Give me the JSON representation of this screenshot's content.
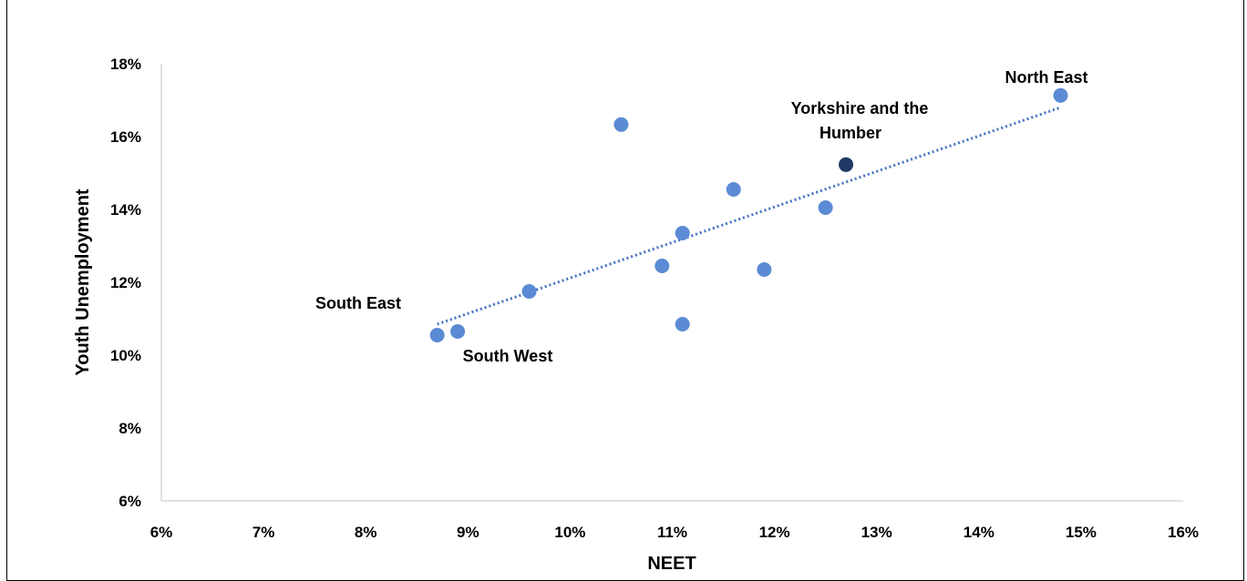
{
  "chart_data": {
    "type": "scatter",
    "title": "",
    "xlabel": "NEET",
    "ylabel": "Youth Unemployment",
    "xlim": [
      0.06,
      0.16
    ],
    "ylim": [
      0.06,
      0.18
    ],
    "x_ticks": [
      "6%",
      "7%",
      "8%",
      "9%",
      "10%",
      "11%",
      "12%",
      "13%",
      "14%",
      "15%",
      "16%"
    ],
    "y_ticks": [
      "6%",
      "8%",
      "10%",
      "12%",
      "14%",
      "16%",
      "18%"
    ],
    "grid": false,
    "legend": "none",
    "point_color": "#5B8BD4",
    "highlight_color": "#203864",
    "trendline_color": "#4472C4",
    "points": [
      {
        "x": 0.087,
        "y": 0.1055
      },
      {
        "x": 0.089,
        "y": 0.1065
      },
      {
        "x": 0.096,
        "y": 0.1175
      },
      {
        "x": 0.105,
        "y": 0.1633
      },
      {
        "x": 0.109,
        "y": 0.1245
      },
      {
        "x": 0.111,
        "y": 0.1335
      },
      {
        "x": 0.111,
        "y": 0.1085
      },
      {
        "x": 0.116,
        "y": 0.1455
      },
      {
        "x": 0.119,
        "y": 0.1235
      },
      {
        "x": 0.125,
        "y": 0.1405
      },
      {
        "x": 0.127,
        "y": 0.1523,
        "highlight": true
      },
      {
        "x": 0.148,
        "y": 0.1713
      }
    ],
    "annotations": [
      {
        "text": "North East"
      },
      {
        "text": "Yorkshire and the"
      },
      {
        "text": "Humber"
      },
      {
        "text": "South East"
      },
      {
        "text": "South West"
      }
    ],
    "trendline": {
      "x": [
        0.087,
        0.148
      ],
      "y": [
        0.1085,
        0.168
      ]
    }
  }
}
